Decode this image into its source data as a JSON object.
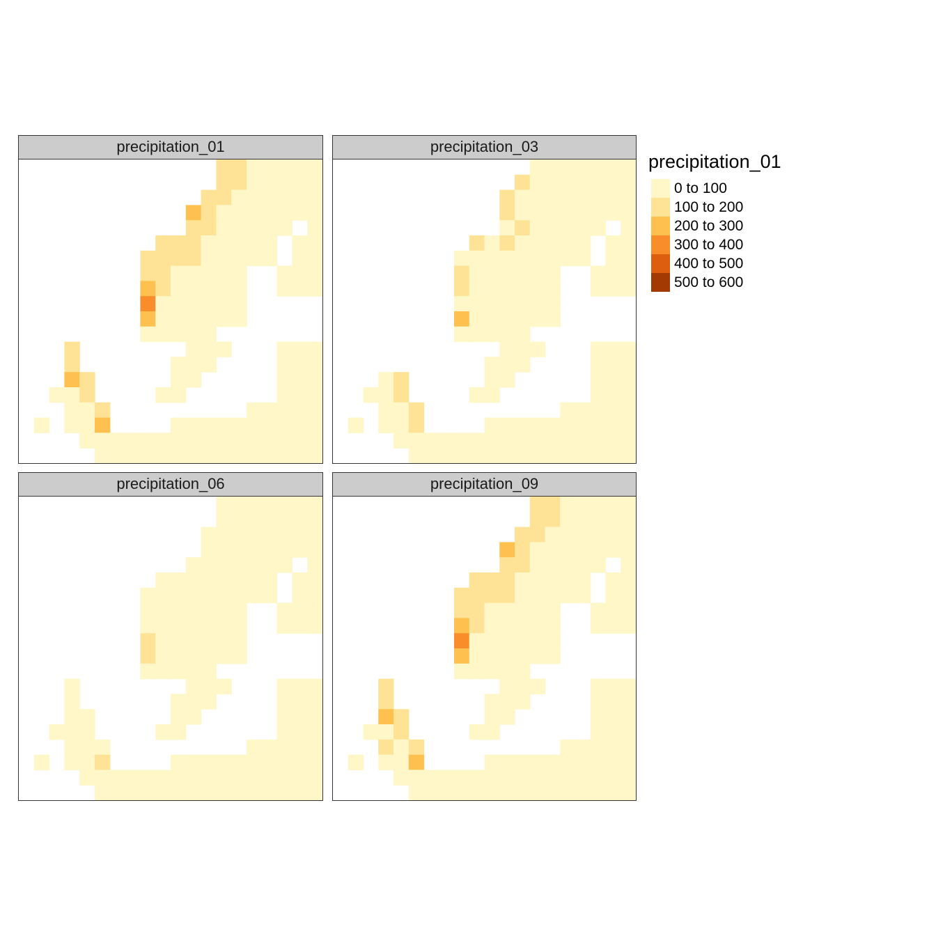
{
  "legend": {
    "title": "precipitation_01",
    "classes": [
      {
        "label": "0 to 100",
        "color": "#FFF7C8"
      },
      {
        "label": "100 to 200",
        "color": "#FEE396"
      },
      {
        "label": "200 to 300",
        "color": "#FEC14F"
      },
      {
        "label": "300 to 400",
        "color": "#F98D29"
      },
      {
        "label": "400 to 500",
        "color": "#DE5E10"
      },
      {
        "label": "500 to 600",
        "color": "#A33A04"
      }
    ]
  },
  "panels": [
    {
      "title": "precipitation_01"
    },
    {
      "title": "precipitation_03"
    },
    {
      "title": "precipitation_06"
    },
    {
      "title": "precipitation_09"
    }
  ],
  "chart_data": {
    "type": "heatmap",
    "grid_cols": 20,
    "grid_rows": 20,
    "cell_key": "0 = no data (sea), 1 = 0 to 100, 2 = 100 to 200, 3 = 200 to 300, 4 = 300 to 400, 5 = 400 to 500, 6 = 500 to 600",
    "maps": [
      {
        "name": "precipitation_01",
        "rows": [
          "00000000000002211111",
          "00000000000002211111",
          "00000000000022111111",
          "00000000000321111111",
          "00000000000221111101",
          "00000000022211111011",
          "00000000222211111011",
          "00000000221111100111",
          "00000000321111100111",
          "00000000411111100000",
          "00000000311111100000",
          "00000000111110000000",
          "00020000000111000111",
          "00020000001110000111",
          "00032000001100000111",
          "00112000011000000111",
          "00011200000000011111",
          "01011300001111111111",
          "00001111111111111111",
          "00000111111111111111"
        ]
      },
      {
        "name": "precipitation_03",
        "rows": [
          "00000000000001111111",
          "00000000000021111111",
          "00000000000211111111",
          "00000000000211111111",
          "00000000000121111101",
          "00000000021211111011",
          "00000000111111111011",
          "00000000211111100111",
          "00000000211111100111",
          "00000000111111100000",
          "00000000311111100000",
          "00000000111110000000",
          "00000000000111000111",
          "00000000001110000111",
          "00012000001100000111",
          "00112000011000000111",
          "00011200000000011111",
          "01011200001111111111",
          "00001111111111111111",
          "00000111111111111111"
        ]
      },
      {
        "name": "precipitation_06",
        "rows": [
          "00000000000001111111",
          "00000000000001111111",
          "00000000000011111111",
          "00000000000011111111",
          "00000000000111111101",
          "00000000011111111011",
          "00000000111111111011",
          "00000000111111100111",
          "00000000111111100111",
          "00000000211111100000",
          "00000000211111100000",
          "00000000111110000000",
          "00010000000111000111",
          "00010000001110000111",
          "00011000001100000111",
          "00111000011000000111",
          "00011100000000011111",
          "01011200001111111111",
          "00001111111111111111",
          "00000111111111111111"
        ]
      },
      {
        "name": "precipitation_09",
        "rows": [
          "00000000000002211111",
          "00000000000002211111",
          "00000000000022111111",
          "00000000000321111111",
          "00000000000221111101",
          "00000000022211111011",
          "00000000222211111011",
          "00000000221111100111",
          "00000000321111100111",
          "00000000411111100000",
          "00000000311111100000",
          "00000000111110000000",
          "00020000000111000111",
          "00020000001110000111",
          "00032000001100000111",
          "00112000011000000111",
          "00021200000000011111",
          "01011300001111111111",
          "00001111111111111111",
          "00000111111111111111"
        ]
      }
    ]
  }
}
